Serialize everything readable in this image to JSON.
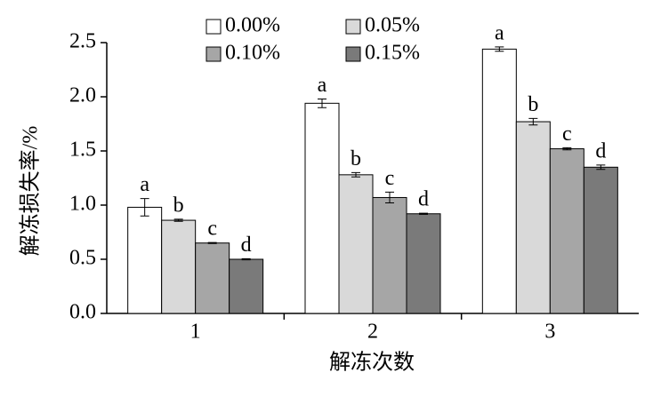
{
  "chart_data": {
    "type": "bar",
    "ylabel": "解冻损失率/%",
    "xlabel": "解冻次数",
    "categories": [
      "1",
      "2",
      "3"
    ],
    "series": [
      {
        "name": "0.00%",
        "color": "#ffffff",
        "values": [
          0.98,
          1.94,
          2.44
        ],
        "errors": [
          0.08,
          0.04,
          0.02
        ],
        "letters": [
          "a",
          "a",
          "a"
        ]
      },
      {
        "name": "0.05%",
        "color": "#d9d9d9",
        "values": [
          0.86,
          1.28,
          1.77
        ],
        "errors": [
          0.01,
          0.02,
          0.03
        ],
        "letters": [
          "b",
          "b",
          "b"
        ]
      },
      {
        "name": "0.10%",
        "color": "#a6a6a6",
        "values": [
          0.65,
          1.07,
          1.52
        ],
        "errors": [
          0.005,
          0.05,
          0.01
        ],
        "letters": [
          "c",
          "c",
          "c"
        ]
      },
      {
        "name": "0.15%",
        "color": "#7a7a7a",
        "values": [
          0.5,
          0.92,
          1.35
        ],
        "errors": [
          0.005,
          0.005,
          0.02
        ],
        "letters": [
          "d",
          "d",
          "d"
        ]
      }
    ],
    "ylim": [
      0,
      2.5
    ],
    "yticks": [
      {
        "value": 0,
        "label": "0.0"
      },
      0.5,
      {
        "value": 1,
        "label": "1.0"
      },
      1.5,
      {
        "value": 2,
        "label": "2.0"
      },
      2.5
    ],
    "legend": "top"
  }
}
